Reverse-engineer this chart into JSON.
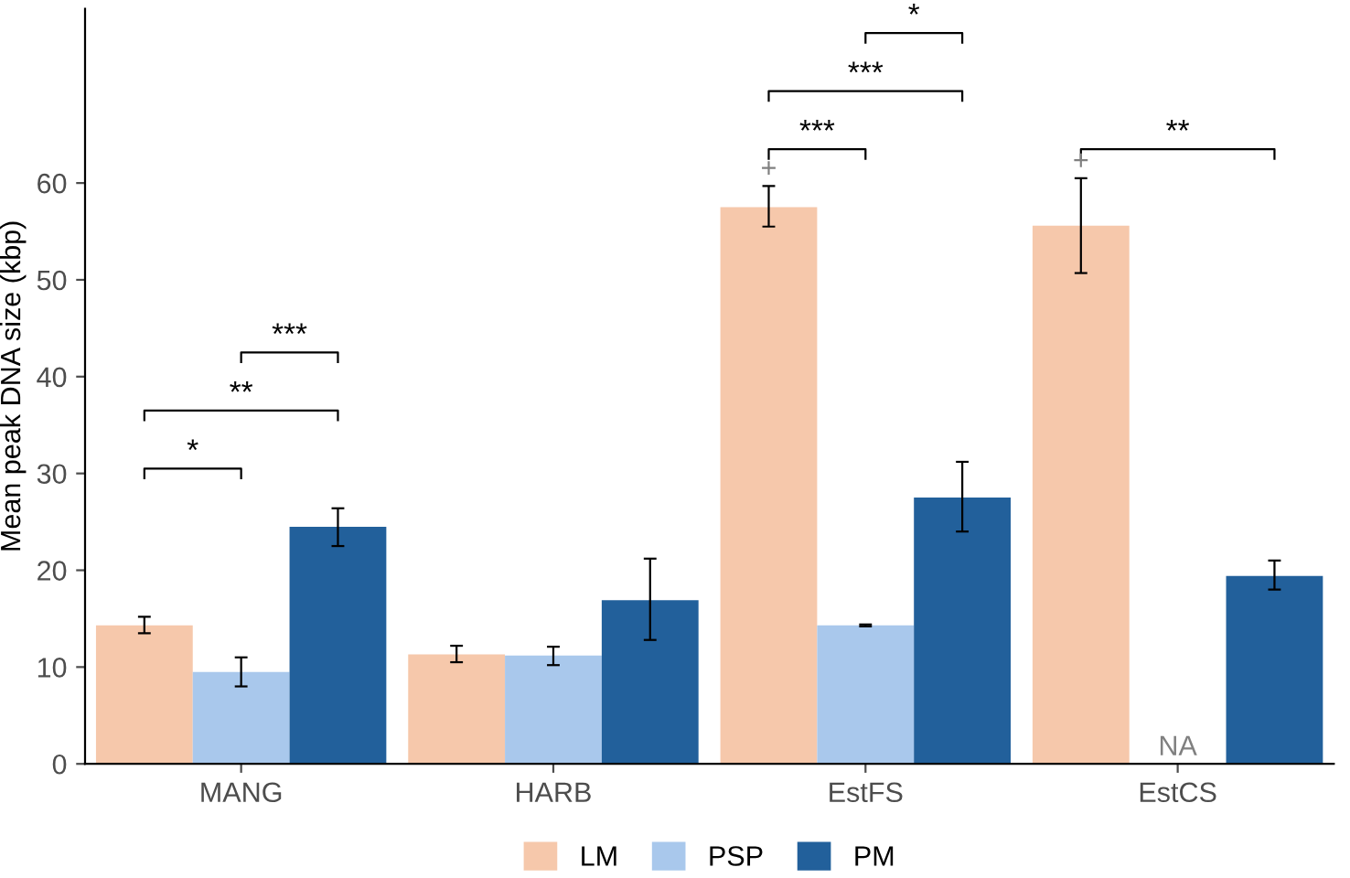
{
  "chart_data": {
    "type": "bar",
    "ylabel": "Mean peak DNA size (kbp)",
    "categories": [
      "MANG",
      "HARB",
      "EstFS",
      "EstCS"
    ],
    "series": [
      {
        "name": "LM",
        "color": "#f6c8ab",
        "values": [
          14.3,
          11.3,
          57.5,
          55.6
        ],
        "errors": [
          [
            13.5,
            15.2
          ],
          [
            10.5,
            12.2
          ],
          [
            55.5,
            59.7
          ],
          [
            50.7,
            60.5
          ]
        ]
      },
      {
        "name": "PSP",
        "color": "#a9c8ec",
        "values": [
          9.5,
          11.2,
          14.3,
          null
        ],
        "errors": [
          [
            8.0,
            11.0
          ],
          [
            10.2,
            12.1
          ],
          [
            14.2,
            14.4
          ],
          null
        ]
      },
      {
        "name": "PM",
        "color": "#22609b",
        "values": [
          24.5,
          16.9,
          27.5,
          19.4
        ],
        "errors": [
          [
            22.5,
            26.4
          ],
          [
            12.8,
            21.2
          ],
          [
            24.0,
            31.2
          ],
          [
            18.0,
            21.0
          ]
        ]
      }
    ],
    "ylim": [
      0,
      78
    ],
    "yticks": [
      0,
      10,
      20,
      30,
      40,
      50,
      60
    ],
    "grid": false,
    "legend": "bottom",
    "annotations": [
      "*",
      "**",
      "***",
      "***",
      "***",
      "*",
      "**",
      "+",
      "+",
      "NA"
    ]
  }
}
